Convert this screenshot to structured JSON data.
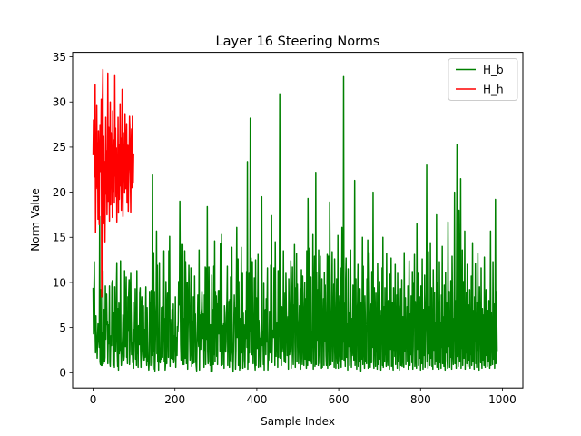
{
  "chart_data": {
    "type": "line",
    "title": "Layer 16 Steering Norms",
    "xlabel": "Sample Index",
    "ylabel": "Norm Value",
    "xlim": [
      -50,
      1050
    ],
    "ylim": [
      -1.7,
      35.5
    ],
    "xticks": [
      0,
      200,
      400,
      600,
      800,
      1000
    ],
    "yticks": [
      0,
      5,
      10,
      15,
      20,
      25,
      30,
      35
    ],
    "legend_position": "top-right",
    "grid": false,
    "series": [
      {
        "name": "H_b",
        "color": "#008000",
        "x_start": 0,
        "x_step": 1,
        "values": [
          9.4,
          4.3,
          8.1,
          12.3,
          5.6,
          4.6,
          2.2,
          6.3,
          3.0,
          3.8,
          1.6,
          4.1,
          5.4,
          4.0,
          3.5,
          2.8,
          17.3,
          1.2,
          0.9,
          9.2,
          0.8,
          4.4,
          1.0,
          0.8,
          11.3,
          1.0,
          6.0,
          7.0,
          1.2,
          1.7,
          9.6,
          3.7,
          8.2,
          8.7,
          5.3,
          5.7,
          1.0,
          4.1,
          5.3,
          3.2,
          9.6,
          1.1,
          0.7,
          3.2,
          4.1,
          3.0,
          9.8,
          10.2,
          8.5,
          0.8,
          3.8,
          6.7,
          0.6,
          9.5,
          5.1,
          2.4,
          4.4,
          9.2,
          12.2,
          2.3,
          0.7,
          7.1,
          0.3,
          7.7,
          2.1,
          4.2,
          2.5,
          12.4,
          3.1,
          0.8,
          1.7,
          2.9,
          4.0,
          6.4,
          2.3,
          1.4,
          1.8,
          11.3,
          6.1,
          2.9,
          5.5,
          10.6,
          1.7,
          3.6,
          1.0,
          8.4,
          4.7,
          8.7,
          10.3,
          0.9,
          2.6,
          9.2,
          11.0,
          5.1,
          2.0,
          3.3,
          2.3,
          1.1,
          7.8,
          0.5,
          2.7,
          4.8,
          4.1,
          9.3,
          1.5,
          4.5,
          0.8,
          11.3,
          2.1,
          4.6,
          0.6,
          5.2,
          3.4,
          3.1,
          8.8,
          9.4,
          2.6,
          0.6,
          7.4,
          8.4,
          3.1,
          2.0,
          1.4,
          7.4,
          2.1,
          1.4,
          4.8,
          1.7,
          6.6,
          9.5,
          2.5,
          0.8,
          7.2,
          3.9,
          1.2,
          1.5,
          0.3,
          1.1,
          9.0,
          5.1,
          7.8,
          0.8,
          9.1,
          1.9,
          2.6,
          21.9,
          1.1,
          0.4,
          13.3,
          2.4,
          9.0,
          0.2,
          2.5,
          5.8,
          7.6,
          15.7,
          2.1,
          11.9,
          1.2,
          3.9,
          0.3,
          5.0,
          12.2,
          1.5,
          1.1,
          2.6,
          1.5,
          7.2,
          5.2,
          7.3,
          1.7,
          5.6,
          4.5,
          13.5,
          1.2,
          6.0,
          0.3,
          0.9,
          10.1,
          6.1,
          1.0,
          5.1,
          8.8,
          7.7,
          1.7,
          13.5,
          8.3,
          15.1,
          0.7,
          5.9,
          2.0,
          1.6,
          3.7,
          7.0,
          2.9,
          1.5,
          7.6,
          1.1,
          1.5,
          4.1,
          3.1,
          8.4,
          0.6,
          3.9,
          2.4,
          1.9,
          5.1,
          4.6,
          5.6,
          10.1,
          7.5,
          8.9,
          19.0,
          8.0,
          3.1,
          1.4,
          14.2,
          6.4,
          3.9,
          14.2,
          0.9,
          6.0,
          0.9,
          2.7,
          13.5,
          1.6,
          12.3,
          7.9,
          1.0,
          6.3,
          10.0,
          0.4,
          4.8,
          7.3,
          11.9,
          8.2,
          3.9,
          1.4,
          2.5,
          11.6,
          7.0,
          0.7,
          5.0,
          5.7,
          1.0,
          8.4,
          6.6,
          1.1,
          10.7,
          3.4,
          6.5,
          1.3,
          0.7,
          0.2,
          3.7,
          5.7,
          8.6,
          3.9,
          2.9,
          13.6,
          0.3,
          6.4,
          5.3,
          2.6,
          6.6,
          7.1,
          9.0,
          5.9,
          3.8,
          6.5,
          4.7,
          0.6,
          8.6,
          2.5,
          11.7,
          0.9,
          5.0,
          11.6,
          3.7,
          18.4,
          2.4,
          1.0,
          1.3,
          11.7,
          4.1,
          4.2,
          0.8,
          5.3,
          0.1,
          1.8,
          10.8,
          0.2,
          7.0,
          6.2,
          0.9,
          11.8,
          2.0,
          14.6,
          1.2,
          9.0,
          6.4,
          8.5,
          1.8,
          7.6,
          0.9,
          7.1,
          9.1,
          4.3,
          9.1,
          6.9,
          2.4,
          14.3,
          7.3,
          0.8,
          15.3,
          2.0,
          0.9,
          5.2,
          2.9,
          5.4,
          0.5,
          7.4,
          6.1,
          2.7,
          2.3,
          3.4,
          6.8,
          8.0,
          11.8,
          0.8,
          5.1,
          2.3,
          7.9,
          0.6,
          8.1,
          1.4,
          10.6,
          1.2,
          9.8,
          13.9,
          2.5,
          1.9,
          0.1,
          2.2,
          5.8,
          8.6,
          5.6,
          7.2,
          0.4,
          2.5,
          9.3,
          16.1,
          3.9,
          12.1,
          12.6,
          0.8,
          10.1,
          4.7,
          0.3,
          6.0,
          2.6,
          0.5,
          13.9,
          4.8,
          2.2,
          11.0,
          0.5,
          6.6,
          2.7,
          5.3,
          1.4,
          0.6,
          4.0,
          6.9,
          3.8,
          11.2,
          2.8,
          23.4,
          0.4,
          6.8,
          1.1,
          11.0,
          2.2,
          5.1,
          28.2,
          4.6,
          12.7,
          2.7,
          2.0,
          12.3,
          6.3,
          1.0,
          3.4,
          4.8,
          10.5,
          1.0,
          0.3,
          12.5,
          0.8,
          8.3,
          6.9,
          2.7,
          6.5,
          13.1,
          0.6,
          5.8,
          4.5,
          3.6,
          0.7,
          3.8,
          0.6,
          3.0,
          19.5,
          3.9,
          3.0,
          4.6,
          0.9,
          9.9,
          0.3,
          6.9,
          6.7,
          7.0,
          2.0,
          8.2,
          3.4,
          7.6,
          11.6,
          0.3,
          2.1,
          1.4,
          3.2,
          6.8,
          2.3,
          2.2,
          11.9,
          8.2,
          17.4,
          1.1,
          3.7,
          4.7,
          4.4,
          3.9,
          11.6,
          8.1,
          0.8,
          14.5,
          6.7,
          1.8,
          3.9,
          5.3,
          5.6,
          0.6,
          11.3,
          1.7,
          5.7,
          9.4,
          30.9,
          1.6,
          10.3,
          6.3,
          0.8,
          7.3,
          2.3,
          3.0,
          3.6,
          13.5,
          2.6,
          1.3,
          4.7,
          8.8,
          1.1,
          11.0,
          7.2,
          5.0,
          1.9,
          3.3,
          6.2,
          0.4,
          10.4,
          6.0,
          2.0,
          2.7,
          7.6,
          12.4,
          0.5,
          4.5,
          6.8,
          11.7,
          2.7,
          0.9,
          7.5,
          6.5,
          14.2,
          3.3,
          0.6,
          9.4,
          4.2,
          13.2,
          1.2,
          9.8,
          5.9,
          5.0,
          1.0,
          2.6,
          7.4,
          4.0,
          9.3,
          0.4,
          6.8,
          11.4,
          2.4,
          0.9,
          10.7,
          5.6,
          3.5,
          0.8,
          7.3,
          10.0,
          1.5,
          8.2,
          2.0,
          0.5,
          13.5,
          5.8,
          0.8,
          19.3,
          9.1,
          1.4,
          5.8,
          13.8,
          1.3,
          7.7,
          10.6,
          1.5,
          1.0,
          4.6,
          3.6,
          15.3,
          0.4,
          5.2,
          8.1,
          12.9,
          0.7,
          4.4,
          22.2,
          0.9,
          11.1,
          5.5,
          3.6,
          9.2,
          0.8,
          13.6,
          7.6,
          2.6,
          1.0,
          12.9,
          3.7,
          6.3,
          0.5,
          10.4,
          0.6,
          7.0,
          4.8,
          8.2,
          0.8,
          11.1,
          3.5,
          9.7,
          5.3,
          1.9,
          0.8,
          6.6,
          13.1,
          0.5,
          9.1,
          12.9,
          4.5,
          0.8,
          18.9,
          10.9,
          2.1,
          0.9,
          4.5,
          7.5,
          13.4,
          1.3,
          5.3,
          3.8,
          9.8,
          0.6,
          12.6,
          7.9,
          3.7,
          0.5,
          4.4,
          10.4,
          2.5,
          1.0,
          15.2,
          0.5,
          8.5,
          6.3,
          2.4,
          1.3,
          11.6,
          4.0,
          0.6,
          5.7,
          16.1,
          1.5,
          9.7,
          3.4,
          32.8,
          1.4,
          7.7,
          2.6,
          0.7,
          10.4,
          12.7,
          1.7,
          3.2,
          5.4,
          0.3,
          11.5,
          2.9,
          4.2,
          6.7,
          0.8,
          8.0,
          13.6,
          5.1,
          0.6,
          6.0,
          1.9,
          3.2,
          9.7,
          2.9,
          1.4,
          5.9,
          21.3,
          0.8,
          4.6,
          10.4,
          2.6,
          0.4,
          6.3,
          7.8,
          12.0,
          0.7,
          3.0,
          5.4,
          1.2,
          9.3,
          4.1,
          0.2,
          7.7,
          1.5,
          6.0,
          15.0,
          0.9,
          11.8,
          4.2,
          2.7,
          0.5,
          8.5,
          5.9,
          1.3,
          3.7,
          1.0,
          10.4,
          6.1,
          14.7,
          0.5,
          2.5,
          13.3,
          8.8,
          3.2,
          0.6,
          4.6,
          7.6,
          1.1,
          11.2,
          2.8,
          5.1,
          20.0,
          1.4,
          0.5,
          9.4,
          6.6,
          3.1,
          0.7,
          8.8,
          2.3,
          5.2,
          0.4,
          12.1,
          7.0,
          0.9,
          3.1,
          4.6,
          10.1,
          1.5,
          6.3,
          0.3,
          6.9,
          3.6,
          11.6,
          0.8,
          15.0,
          0.6,
          4.8,
          7.3,
          1.2,
          9.4,
          2.0,
          3.3,
          0.7,
          13.2,
          5.0,
          1.5,
          0.8,
          8.0,
          3.4,
          6.2,
          0.4,
          10.9,
          2.6,
          4.5,
          12.7,
          0.7,
          5.7,
          7.8,
          1.0,
          0.3,
          9.4,
          2.5,
          6.4,
          1.8,
          12.0,
          0.9,
          4.8,
          3.3,
          8.6,
          0.5,
          11.0,
          5.4,
          1.2,
          7.4,
          0.3,
          3.7,
          5.8,
          9.3,
          0.8,
          2.2,
          10.3,
          0.7,
          3.9,
          6.2,
          1.5,
          0.6,
          13.3,
          4.5,
          2.4,
          8.3,
          0.9,
          5.1,
          3.0,
          7.3,
          1.3,
          9.6,
          0.4,
          4.1,
          12.4,
          2.7,
          0.8,
          6.5,
          2.0,
          8.5,
          4.7,
          1.1,
          11.2,
          0.4,
          2.9,
          9.9,
          5.3,
          13.1,
          0.7,
          7.9,
          3.5,
          1.4,
          0.5,
          16.5,
          4.1,
          2.6,
          11.0,
          0.8,
          6.8,
          1.6,
          3.8,
          8.4,
          0.3,
          9.6,
          5.6,
          1.0,
          12.6,
          2.7,
          0.4,
          7.0,
          4.6,
          1.9,
          10.8,
          0.6,
          3.3,
          6.1,
          8.9,
          23.0,
          1.2,
          4.4,
          0.5,
          13.4,
          2.1,
          7.3,
          5.0,
          0.8,
          14.4,
          1.6,
          3.8,
          9.4,
          0.7,
          6.1,
          0.4,
          11.4,
          4.7,
          2.5,
          8.9,
          0.9,
          5.6,
          1.3,
          3.1,
          17.5,
          0.6,
          4.6,
          10.0,
          2.0,
          7.0,
          0.4,
          12.3,
          3.7,
          1.1,
          5.6,
          0.5,
          8.6,
          2.8,
          14.0,
          1.0,
          6.2,
          3.4,
          0.7,
          9.7,
          4.8,
          0.3,
          11.1,
          2.2,
          5.7,
          7.7,
          1.4,
          0.5,
          16.7,
          4.0,
          2.9,
          9.0,
          0.6,
          6.8,
          1.7,
          10.2,
          3.4,
          0.4,
          12.9,
          7.7,
          2.1,
          0.9,
          6.0,
          3.7,
          20.0,
          1.0,
          8.0,
          4.1,
          0.5,
          11.5,
          25.3,
          1.8,
          6.4,
          0.7,
          3.0,
          18.0,
          9.0,
          1.2,
          4.9,
          21.5,
          0.5,
          7.2,
          2.7,
          13.6,
          0.8,
          5.5,
          10.1,
          1.6,
          3.6,
          15.7,
          0.4,
          6.7,
          2.2,
          8.9,
          1.0,
          12.0,
          4.3,
          0.7,
          7.5,
          3.3,
          1.4,
          9.2,
          0.5,
          5.6,
          2.0,
          10.7,
          0.8,
          4.5,
          14.4,
          1.2,
          6.9,
          2.7,
          0.4,
          8.4,
          3.5,
          12.1,
          1.0,
          5.0,
          0.6,
          7.8,
          2.5,
          13.2,
          1.6,
          4.2,
          0.3,
          9.5,
          3.9,
          6.3,
          1.1,
          11.6,
          2.1,
          0.5,
          7.1,
          4.6,
          1.4,
          6.4,
          0.8,
          12.8,
          3.2,
          0.6,
          5.3,
          9.2,
          1.9,
          4.5,
          0.7,
          6.9,
          2.6,
          1.2,
          8.0,
          3.6,
          0.5,
          5.7,
          15.7,
          0.8,
          6.7,
          2.3,
          4.4,
          0.9,
          12.3,
          3.0,
          1.5,
          7.6,
          0.5,
          4.1,
          19.2,
          1.0,
          9.0,
          6.2,
          2.4
        ]
      },
      {
        "name": "H_h",
        "color": "#ff0000",
        "x_start": 0,
        "x_step": 1,
        "values": [
          24.1,
          28.0,
          24.4,
          25.9,
          21.7,
          31.9,
          15.5,
          22.9,
          20.4,
          29.6,
          20.6,
          25.5,
          17.0,
          26.8,
          19.8,
          16.4,
          24.0,
          27.4,
          22.3,
          25.0,
          30.3,
          8.4,
          11.0,
          30.6,
          33.6,
          18.4,
          26.2,
          16.5,
          23.4,
          14.5,
          21.2,
          28.3,
          19.8,
          24.6,
          17.5,
          22.9,
          33.2,
          19.0,
          27.2,
          21.9,
          16.8,
          25.0,
          30.0,
          18.6,
          26.6,
          22.1,
          24.7,
          17.2,
          29.0,
          20.1,
          23.2,
          25.8,
          18.8,
          32.9,
          21.8,
          27.1,
          19.5,
          24.9,
          16.7,
          23.9,
          21.2,
          28.3,
          17.7,
          25.3,
          19.2,
          22.6,
          29.8,
          20.7,
          26.0,
          18.0,
          23.4,
          31.4,
          22.4,
          17.3,
          26.6,
          21.4,
          25.3,
          19.9,
          28.7,
          23.6,
          20.4,
          24.9,
          27.6,
          18.8,
          22.0,
          25.2,
          17.9,
          21.7,
          23.4,
          28.4,
          26.7,
          21.6,
          17.8,
          24.9,
          27.0,
          20.5,
          28.4,
          22.9,
          21.0,
          24.3
        ]
      }
    ]
  }
}
